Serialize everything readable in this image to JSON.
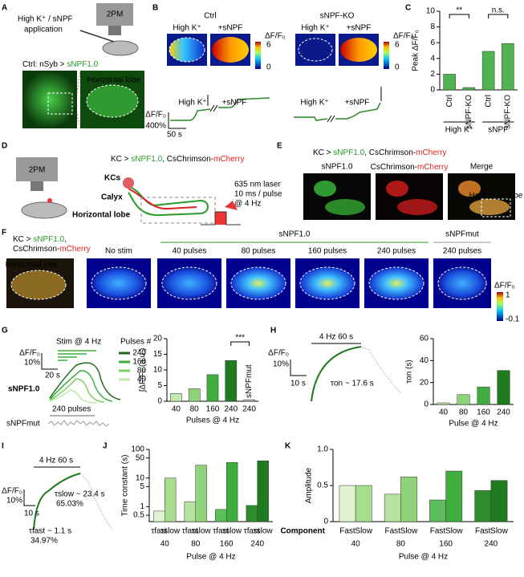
{
  "panels": {
    "A": {
      "letter": "A",
      "application": "High K⁺ / sNPF",
      "application_2": "application",
      "scope": "2PM",
      "genotype": "Ctrl: nSyb > ",
      "sensor": "sNPF1.0",
      "lobe": "Horizontal lobe"
    },
    "B": {
      "letter": "B",
      "groups": [
        "Ctrl",
        "sNPF-KO"
      ],
      "stimuli": [
        "High K⁺",
        "+sNPF"
      ],
      "colorbar_label": "ΔF/F₀",
      "colorbar_ticks": [
        6,
        0
      ],
      "scale_y": "ΔF/F₀",
      "scale_y_value": "400%",
      "scale_x": "50 s"
    },
    "C": {
      "letter": "C"
    },
    "D": {
      "letter": "D",
      "scope": "2PM",
      "genotype": [
        "KC > ",
        "sNPF1.0",
        ", CsChrimson-",
        "mCherry"
      ],
      "structures": [
        "KCs",
        "Calyx",
        "Horizontal lobe"
      ],
      "laser": [
        "635 nm laser",
        "10 ms / pulse",
        "@ 4 Hz"
      ]
    },
    "E": {
      "letter": "E",
      "genotype": [
        "KC > ",
        "sNPF1.0",
        ",  CsChrimson-",
        "mCherry"
      ],
      "columns": [
        "sNPF1.0",
        "CsChrimson-",
        "mCherry",
        "Merge"
      ],
      "lobe": "Horizontal lobe"
    },
    "F": {
      "letter": "F",
      "genotype": [
        "KC > ",
        "sNPF1.0",
        ","
      ],
      "genotype_2": [
        "CsChrimson-",
        "mCherry"
      ],
      "lobe": "Horizontal lobe",
      "no_stim": "No stim",
      "group": "sNPF1.0",
      "conditions": [
        "40 pulses",
        "80 pulses",
        "160 pulses",
        "240 pulses"
      ],
      "mut_group": "sNPFmut",
      "mut_condition": "240 pulses",
      "colorbar_label": "ΔF/F₀",
      "colorbar_ticks": [
        1,
        -0.1
      ]
    },
    "G": {
      "letter": "G",
      "stim": "Stim @ 4 Hz",
      "legend_title": "Pulses #",
      "legend": [
        240,
        160,
        80,
        40
      ],
      "legend_colors": [
        "#1e6b1e",
        "#3fae3f",
        "#7fcf66",
        "#bfe8a8"
      ],
      "scale_y": "ΔF/F₀",
      "scale_y_value": "10%",
      "scale_x": "20 s",
      "sensor": "sNPF1.0",
      "mut_stim": "240 pulses",
      "mut": "sNPFmut"
    },
    "H": {
      "letter": "H",
      "stim": "4 Hz 60 s",
      "scale_y": "ΔF/F₀",
      "scale_y_value": "10%",
      "scale_x": "10 s",
      "tau": "τon ~ 17.6 s"
    },
    "I": {
      "letter": "I",
      "stim": "4 Hz 60 s",
      "scale_y": "ΔF/F₀",
      "scale_y_value": "10%",
      "scale_x": "10 s",
      "slow": "τslow ~ 23.4 s",
      "slow_pct": "65.03%",
      "fast": "τfast ~ 1.1 s",
      "fast_pct": "34.97%"
    },
    "J": {
      "letter": "J"
    },
    "K": {
      "letter": "K"
    }
  },
  "chart_data": [
    {
      "type": "bar",
      "ylabel": "Peak ΔF/F₀",
      "categories": [
        "Ctrl",
        "sNPF-KO",
        "Ctrl",
        "sNPF-KO"
      ],
      "groups": [
        "High K⁺",
        "sNPF"
      ],
      "values": [
        2,
        0.3,
        4.9,
        5.9
      ],
      "color": "#4fb34f",
      "ylim": [
        0,
        10
      ],
      "yticks": [
        0,
        2,
        4,
        6,
        8,
        10
      ],
      "annotations": [
        "**",
        "n.s."
      ]
    },
    {
      "type": "bar",
      "ylabel": "∫ΔF/F₀ (a.u.)",
      "xlabel": "Pulses @ 4 Hz",
      "categories": [
        "40",
        "80",
        "160",
        "240",
        "240"
      ],
      "values": [
        2.5,
        4,
        8.5,
        13,
        0.5
      ],
      "colors": [
        "#c5eab0",
        "#8fd47a",
        "#3fae3f",
        "#1e7b1e",
        "#bbbbbb"
      ],
      "bar_labels": [
        null,
        null,
        null,
        null,
        "sNPFmut"
      ],
      "ylim": [
        0,
        20
      ],
      "yticks": [
        0,
        5,
        10,
        15,
        20
      ],
      "annotations": [
        "***"
      ]
    },
    {
      "type": "bar",
      "ylabel": "τon (s)",
      "xlabel": "Pulse @ 4 Hz",
      "categories": [
        "40",
        "80",
        "160",
        "240"
      ],
      "values": [
        1.5,
        9,
        16,
        31
      ],
      "colors": [
        "#c5eab0",
        "#8fd47a",
        "#3fae3f",
        "#1e7b1e"
      ],
      "ylim": [
        0,
        60
      ],
      "yticks": [
        0,
        20,
        40,
        60
      ]
    },
    {
      "type": "bar",
      "ylabel": "Time constant (s)",
      "xlabel": "Pulse @ 4 Hz",
      "log": true,
      "categories": [
        "40",
        "80",
        "160",
        "240"
      ],
      "series": [
        {
          "name": "τfast",
          "colors": [
            "#dff3d2",
            "#b6e3a0",
            "#5cbf5c",
            "#2e8b2e"
          ],
          "values": [
            0.7,
            1.5,
            0.8,
            1.1
          ]
        },
        {
          "name": "τslow",
          "colors": [
            "#a6dd8e",
            "#8fd47a",
            "#3fae3f",
            "#1e7b1e"
          ],
          "values": [
            10,
            28,
            35,
            40
          ]
        }
      ],
      "ylim": [
        0.3,
        100
      ],
      "yticks": [
        0.5,
        1,
        5,
        10,
        50,
        100
      ]
    },
    {
      "type": "bar",
      "ylabel": "Amplitude",
      "xlabel": "Pulse @ 4 Hz",
      "component_label": "Component",
      "categories": [
        "40",
        "80",
        "160",
        "240"
      ],
      "series": [
        {
          "name": "Fast",
          "colors": [
            "#dff3d2",
            "#b6e3a0",
            "#5cbf5c",
            "#2e8b2e"
          ],
          "values": [
            0.5,
            0.38,
            0.3,
            0.43
          ]
        },
        {
          "name": "Slow",
          "colors": [
            "#a6dd8e",
            "#8fd47a",
            "#3fae3f",
            "#1e7b1e"
          ],
          "values": [
            0.5,
            0.62,
            0.7,
            0.57
          ]
        }
      ],
      "ylim": [
        0,
        1
      ],
      "yticks": [
        0,
        0.5,
        {
          "value": 1,
          "label": "1.0"
        }
      ]
    }
  ]
}
